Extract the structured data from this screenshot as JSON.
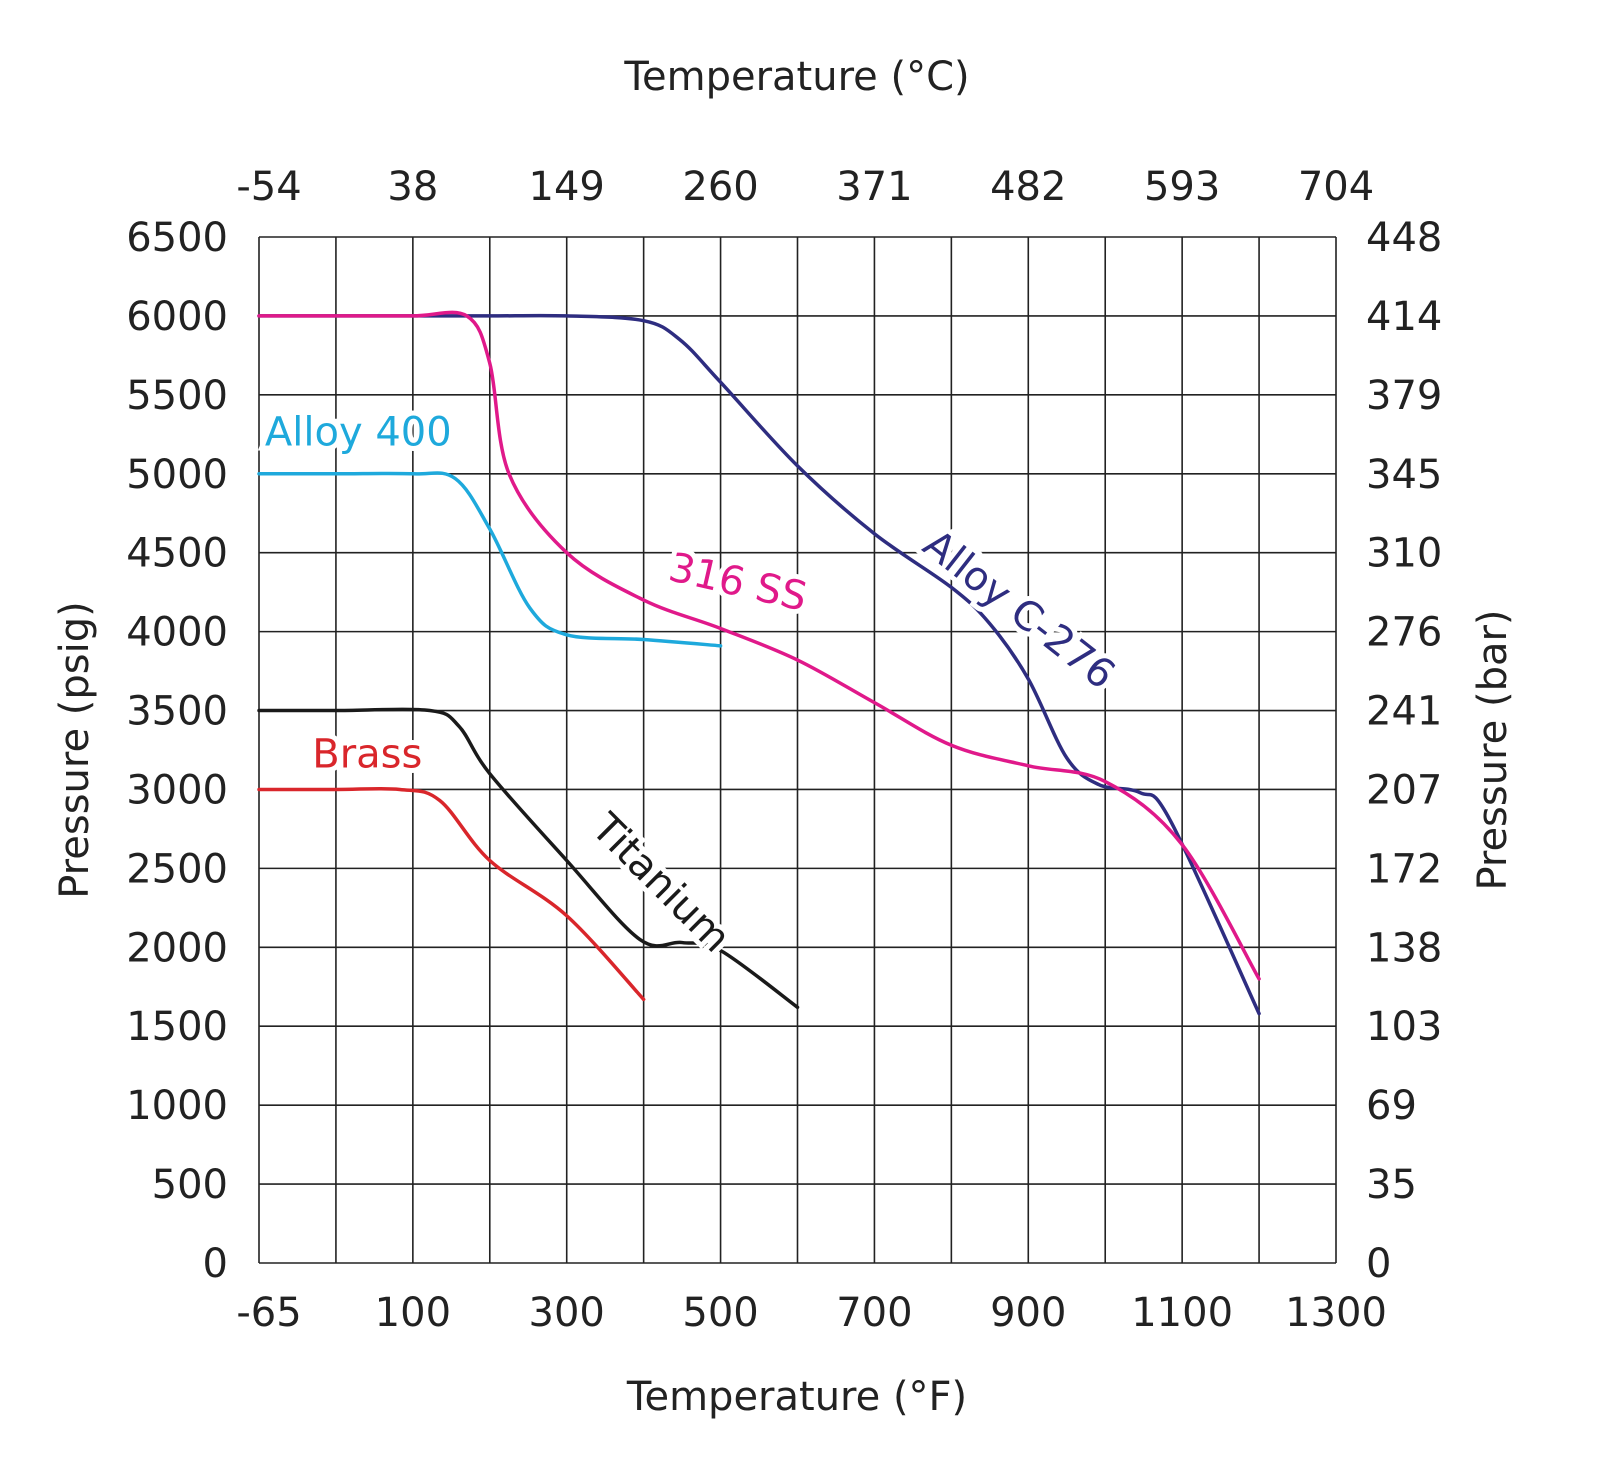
{
  "chart_data": {
    "type": "line",
    "title": "",
    "xlabel": "Temperature (°F)",
    "x2label": "Temperature (°C)",
    "ylabel": "Pressure (psig)",
    "y2label": "Pressure (bar)",
    "xlim": [
      -65,
      1300
    ],
    "ylim": [
      0,
      6500
    ],
    "grid": true,
    "x_gridlines": [
      -65,
      0,
      100,
      200,
      300,
      400,
      500,
      600,
      700,
      800,
      900,
      1000,
      1100,
      1200,
      1300
    ],
    "x_ticks": [
      {
        "value": -65,
        "label": "-65"
      },
      {
        "value": 100,
        "label": "100"
      },
      {
        "value": 300,
        "label": "300"
      },
      {
        "value": 500,
        "label": "500"
      },
      {
        "value": 700,
        "label": "700"
      },
      {
        "value": 900,
        "label": "900"
      },
      {
        "value": 1100,
        "label": "1100"
      },
      {
        "value": 1300,
        "label": "1300"
      }
    ],
    "x2_ticks": [
      {
        "value": -65,
        "label": "-54"
      },
      {
        "value": 100,
        "label": "38"
      },
      {
        "value": 300,
        "label": "149"
      },
      {
        "value": 500,
        "label": "260"
      },
      {
        "value": 700,
        "label": "371"
      },
      {
        "value": 900,
        "label": "482"
      },
      {
        "value": 1100,
        "label": "593"
      },
      {
        "value": 1300,
        "label": "704"
      }
    ],
    "y_ticks": [
      {
        "value": 0,
        "label": "0",
        "bar": "0"
      },
      {
        "value": 500,
        "label": "500",
        "bar": "35"
      },
      {
        "value": 1000,
        "label": "1000",
        "bar": "69"
      },
      {
        "value": 1500,
        "label": "1500",
        "bar": "103"
      },
      {
        "value": 2000,
        "label": "2000",
        "bar": "138"
      },
      {
        "value": 2500,
        "label": "2500",
        "bar": "172"
      },
      {
        "value": 3000,
        "label": "3000",
        "bar": "207"
      },
      {
        "value": 3500,
        "label": "3500",
        "bar": "241"
      },
      {
        "value": 4000,
        "label": "4000",
        "bar": "276"
      },
      {
        "value": 4500,
        "label": "4500",
        "bar": "310"
      },
      {
        "value": 5000,
        "label": "5000",
        "bar": "345"
      },
      {
        "value": 5500,
        "label": "5500",
        "bar": "379"
      },
      {
        "value": 6000,
        "label": "6000",
        "bar": "414"
      },
      {
        "value": 6500,
        "label": "6500",
        "bar": "448"
      }
    ],
    "series": [
      {
        "name": "Alloy C-276",
        "color": "#2e2d80",
        "x": [
          -65,
          0,
          100,
          200,
          300,
          400,
          447,
          500,
          600,
          700,
          800,
          850,
          900,
          950,
          992,
          1045,
          1085,
          1200
        ],
        "y": [
          6000,
          6000,
          6000,
          6000,
          6000,
          5970,
          5850,
          5580,
          5050,
          4620,
          4280,
          4050,
          3700,
          3200,
          3030,
          2980,
          2800,
          1580
        ]
      },
      {
        "name": "316 SS",
        "color": "#e0198a",
        "x": [
          -65,
          0,
          100,
          170,
          200,
          225,
          300,
          400,
          500,
          600,
          700,
          800,
          900,
          1000,
          1100,
          1200
        ],
        "y": [
          6000,
          6000,
          6000,
          6000,
          5700,
          5000,
          4500,
          4200,
          4020,
          3820,
          3550,
          3280,
          3150,
          3050,
          2650,
          1800
        ]
      },
      {
        "name": "Alloy 400",
        "color": "#1ea9dc",
        "x": [
          -65,
          0,
          100,
          155,
          200,
          252,
          300,
          400,
          500
        ],
        "y": [
          5000,
          5000,
          5000,
          4970,
          4650,
          4150,
          3980,
          3950,
          3910
        ]
      },
      {
        "name": "Titanium",
        "color": "#1a1a1a",
        "x": [
          -65,
          0,
          122,
          160,
          200,
          300,
          395,
          450,
          500,
          600
        ],
        "y": [
          3500,
          3500,
          3500,
          3400,
          3100,
          2550,
          2050,
          2030,
          1980,
          1620
        ]
      },
      {
        "name": "Brass",
        "color": "#d9262b",
        "x": [
          -65,
          0,
          83,
          135,
          200,
          300,
          400
        ],
        "y": [
          3000,
          3000,
          3000,
          2930,
          2550,
          2200,
          1670
        ]
      }
    ],
    "annotations": [
      {
        "text": "Alloy C-276",
        "series": "Alloy C-276",
        "at": [
          760,
          4520
        ],
        "rotate": 38
      },
      {
        "text": "316 SS",
        "series": "316 SS",
        "at": [
          430,
          4330
        ],
        "rotate": 13
      },
      {
        "text": "Alloy 400",
        "series": "Alloy 400",
        "at": [
          -60,
          5180
        ],
        "rotate": 0
      },
      {
        "text": "Titanium",
        "series": "Titanium",
        "at": [
          330,
          2740
        ],
        "rotate": 45
      },
      {
        "text": "Brass",
        "series": "Brass",
        "at": [
          -20,
          3140
        ],
        "rotate": 0
      }
    ]
  }
}
